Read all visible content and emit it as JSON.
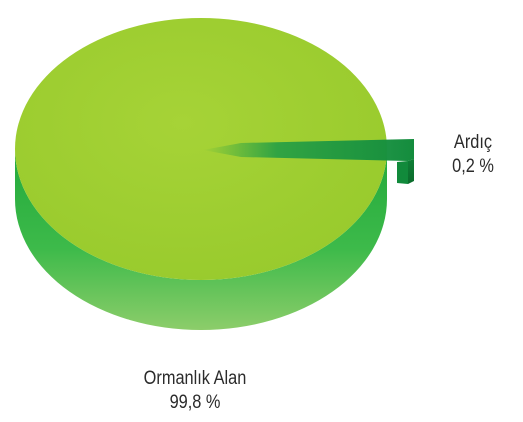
{
  "chart_data": {
    "type": "pie",
    "style": "3d-exploded",
    "slices": [
      {
        "name": "Ormanlık Alan",
        "value": 99.8,
        "label": "99,8 %",
        "color": "#9ccd2f",
        "side_color": "#2fad42"
      },
      {
        "name": "Ardıç",
        "value": 0.2,
        "label": "0,2 %",
        "color": "#1f9b45",
        "side_color": "#0f7a32"
      }
    ],
    "legend": "none",
    "labels_outside": true
  }
}
